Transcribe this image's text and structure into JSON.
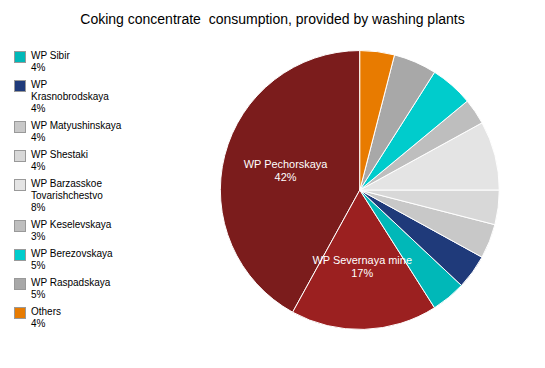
{
  "chart_data": {
    "type": "pie",
    "title": "Coking concentrate  consumption, provided by washing plants",
    "categories": [
      "WP Pechorskaya",
      "WP Severnaya mine",
      "WP Sibir",
      "WP\nKrasnobrodskaya",
      "WP Matyushinskaya",
      "WP Shestaki",
      "WP Barzasskoe\nTovarishchestvo",
      "WP Keselevskaya",
      "WP Berezovskaya",
      "WP Raspadskaya",
      "Others"
    ],
    "values": [
      42,
      17,
      4,
      4,
      4,
      4,
      8,
      3,
      5,
      5,
      4
    ],
    "value_labels": [
      "42%",
      "17%",
      "4%",
      "4%",
      "4%",
      "4%",
      "8%",
      "3%",
      "5%",
      "5%",
      "4%"
    ],
    "colors": [
      "#7B1C1C",
      "#9B2020",
      "#00B8B8",
      "#1F3A7A",
      "#C8C8C8",
      "#D8D8D8",
      "#E4E4E4",
      "#BEBEBE",
      "#00CCCC",
      "#A8A8A8",
      "#E87B00"
    ],
    "data_labels": true,
    "legend": "left"
  }
}
